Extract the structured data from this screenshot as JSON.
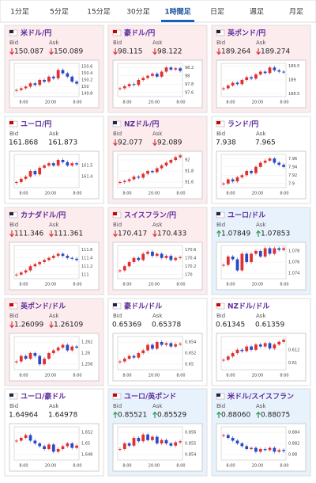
{
  "tabs": [
    "1分足",
    "5分足",
    "15分足",
    "30分足",
    "1時間足",
    "日足",
    "週足",
    "月足"
  ],
  "selected_tab": 4,
  "bid_label": "Bid",
  "ask_label": "Ask",
  "chart_xticks": [
    "8:00",
    "20:00",
    "8:00"
  ],
  "tiles": [
    {
      "name": "米ドル/円",
      "direction": "down",
      "bid": "150.087",
      "ask": "150.089",
      "chart": {
        "ylim": [
          149.7,
          150.7
        ],
        "yticks": [
          150.6,
          150.4,
          150.2,
          150,
          149.8
        ],
        "closes": [
          149.9,
          149.95,
          150.0,
          150.1,
          150.05,
          150.2,
          150.15,
          150.3,
          150.25,
          150.5,
          150.4,
          150.3,
          150.15,
          150.09
        ]
      }
    },
    {
      "name": "豪ドル/円",
      "direction": "down",
      "bid": "98.115",
      "ask": "98.122",
      "chart": {
        "ylim": [
          97.5,
          98.3
        ],
        "yticks": [
          98.2,
          98,
          97.8,
          97.6
        ],
        "closes": [
          97.7,
          97.75,
          97.8,
          97.78,
          97.9,
          97.95,
          98.0,
          98.05,
          97.98,
          98.1,
          98.2,
          98.15,
          98.18,
          98.12
        ]
      }
    },
    {
      "name": "英ポンド/円",
      "direction": "down",
      "bid": "189.264",
      "ask": "189.274",
      "chart": {
        "ylim": [
          188.4,
          189.6
        ],
        "yticks": [
          189.5,
          189,
          188.5
        ],
        "closes": [
          188.7,
          188.8,
          188.9,
          188.85,
          189.0,
          189.1,
          189.05,
          189.2,
          189.3,
          189.25,
          189.45,
          189.35,
          189.3,
          189.27
        ]
      }
    },
    {
      "name": "ユーロ/円",
      "direction": null,
      "bid": "161.868",
      "ask": "161.873",
      "chart": {
        "ylim": [
          161.3,
          161.6
        ],
        "yticks": [
          161.5,
          161.4
        ],
        "closes": [
          161.35,
          161.38,
          161.4,
          161.45,
          161.42,
          161.48,
          161.5,
          161.52,
          161.5,
          161.55,
          161.53,
          161.5,
          161.52,
          161.51
        ]
      }
    },
    {
      "name": "NZドル/円",
      "direction": "down",
      "bid": "92.077",
      "ask": "92.089",
      "chart": {
        "ylim": [
          91.5,
          92.1
        ],
        "yticks": [
          92,
          91.8,
          91.6
        ],
        "closes": [
          91.6,
          91.62,
          91.65,
          91.7,
          91.68,
          91.75,
          91.8,
          91.78,
          91.85,
          91.9,
          91.95,
          92.0,
          92.05,
          92.08
        ]
      }
    },
    {
      "name": "ランド/円",
      "direction": null,
      "bid": "7.938",
      "ask": "7.965",
      "chart": {
        "ylim": [
          7.89,
          7.97
        ],
        "yticks": [
          7.96,
          7.94,
          7.92,
          7.9
        ],
        "closes": [
          7.9,
          7.91,
          7.905,
          7.915,
          7.92,
          7.93,
          7.925,
          7.94,
          7.95,
          7.955,
          7.96,
          7.95,
          7.945,
          7.94
        ]
      }
    },
    {
      "name": "カナダドル/円",
      "direction": "down",
      "bid": "111.346",
      "ask": "111.361",
      "chart": {
        "ylim": [
          110.9,
          111.7
        ],
        "yticks": [
          111.6,
          111.4,
          111.2,
          111
        ],
        "closes": [
          111.0,
          111.05,
          111.1,
          111.2,
          111.25,
          111.3,
          111.35,
          111.4,
          111.45,
          111.5,
          111.45,
          111.4,
          111.38,
          111.35
        ]
      }
    },
    {
      "name": "スイスフラン/円",
      "direction": "down",
      "bid": "170.417",
      "ask": "170.433",
      "chart": {
        "ylim": [
          169.9,
          170.7
        ],
        "yticks": [
          170.6,
          170.4,
          170.2,
          170
        ],
        "closes": [
          170.1,
          170.2,
          170.3,
          170.4,
          170.35,
          170.5,
          170.55,
          170.45,
          170.5,
          170.4,
          170.45,
          170.35,
          170.4,
          170.42
        ]
      }
    },
    {
      "name": "ユーロ/ドル",
      "direction": "up",
      "bid": "1.07849",
      "ask": "1.07853",
      "chart": {
        "ylim": [
          1.073,
          1.079
        ],
        "yticks": [
          1.078,
          1.076,
          1.074
        ],
        "closes": [
          1.0755,
          1.077,
          1.0765,
          1.0745,
          1.0775,
          1.076,
          1.0775,
          1.078,
          1.077,
          1.0785,
          1.0775,
          1.0785,
          1.0782,
          1.0785
        ]
      }
    },
    {
      "name": "英ポンド/ドル",
      "direction": "down",
      "bid": "1.26099",
      "ask": "1.26109",
      "chart": {
        "ylim": [
          1.257,
          1.263
        ],
        "yticks": [
          1.262,
          1.26,
          1.258
        ],
        "closes": [
          1.2585,
          1.2595,
          1.259,
          1.26,
          1.2595,
          1.258,
          1.259,
          1.26,
          1.2605,
          1.261,
          1.2615,
          1.2605,
          1.2612,
          1.261
        ]
      }
    },
    {
      "name": "豪ドル/ドル",
      "direction": null,
      "bid": "0.65369",
      "ask": "0.65378",
      "chart": {
        "ylim": [
          0.649,
          0.655
        ],
        "yticks": [
          0.654,
          0.652,
          0.65
        ],
        "closes": [
          0.6505,
          0.651,
          0.6515,
          0.6512,
          0.652,
          0.6525,
          0.6535,
          0.6528,
          0.654,
          0.6535,
          0.6538,
          0.6532,
          0.6536,
          0.6537
        ]
      }
    },
    {
      "name": "NZドル/ドル",
      "direction": null,
      "bid": "0.61345",
      "ask": "0.61359",
      "chart": {
        "ylim": [
          0.609,
          0.614
        ],
        "yticks": [
          0.612,
          0.61
        ],
        "closes": [
          0.6105,
          0.611,
          0.6115,
          0.612,
          0.6118,
          0.6125,
          0.612,
          0.6128,
          0.6125,
          0.613,
          0.6122,
          0.6128,
          0.6132,
          0.6135
        ]
      }
    },
    {
      "name": "ユーロ/豪ドル",
      "direction": null,
      "bid": "1.64964",
      "ask": "1.64978",
      "chart": {
        "ylim": [
          1.647,
          1.653
        ],
        "yticks": [
          1.652,
          1.65,
          1.648
        ],
        "closes": [
          1.6505,
          1.651,
          1.6515,
          1.6505,
          1.65,
          1.6495,
          1.649,
          1.6498,
          1.6485,
          1.649,
          1.6495,
          1.65,
          1.6492,
          1.6496
        ]
      }
    },
    {
      "name": "ユーロ/英ポンド",
      "direction": "up",
      "bid": "0.85521",
      "ask": "0.85529",
      "chart": {
        "ylim": [
          0.8535,
          0.8565
        ],
        "yticks": [
          0.856,
          0.855,
          0.854
        ],
        "closes": [
          0.8545,
          0.855,
          0.8548,
          0.8555,
          0.8552,
          0.8558,
          0.8553,
          0.8556,
          0.855,
          0.8553,
          0.855,
          0.8548,
          0.8551,
          0.8552
        ]
      }
    },
    {
      "name": "米ドル/スイスフラン",
      "direction": "up",
      "bid": "0.88060",
      "ask": "0.88075",
      "chart": {
        "ylim": [
          0.879,
          0.885
        ],
        "yticks": [
          0.884,
          0.882,
          0.88
        ],
        "closes": [
          0.8835,
          0.883,
          0.8825,
          0.882,
          0.8815,
          0.881,
          0.8812,
          0.8805,
          0.881,
          0.8808,
          0.8812,
          0.8805,
          0.8808,
          0.8806
        ]
      }
    }
  ]
}
